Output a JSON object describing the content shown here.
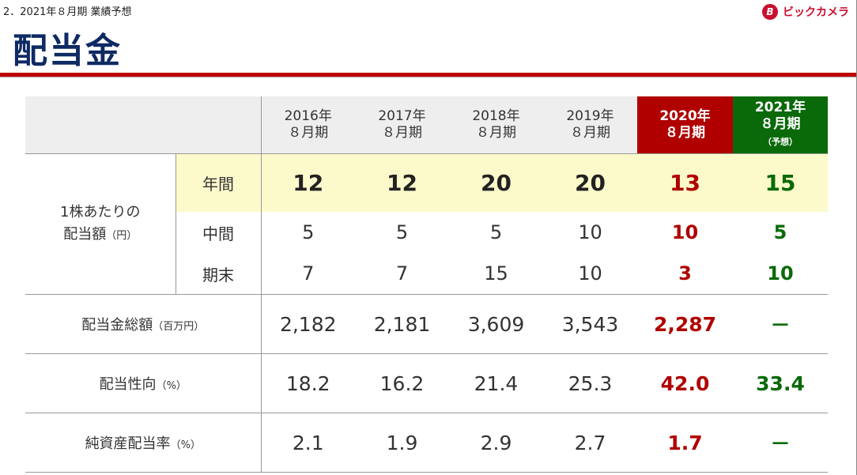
{
  "header": {
    "subtitle": "2．2021年８月期 業績予想",
    "title": "配当金",
    "logo_text": "ビックカメラ",
    "logo_mark": "B"
  },
  "table": {
    "columns": [
      {
        "year": "2016年",
        "period": "８月期"
      },
      {
        "year": "2017年",
        "period": "８月期"
      },
      {
        "year": "2018年",
        "period": "８月期"
      },
      {
        "year": "2019年",
        "period": "８月期"
      },
      {
        "year": "2020年",
        "period": "８月期"
      },
      {
        "year": "2021年",
        "period": "８月期",
        "note": "（予想）"
      }
    ],
    "per_share_group": {
      "line1": "1株あたりの",
      "line2": "配当額",
      "unit": "（円）"
    },
    "annual": {
      "label": "年間",
      "values": [
        "12",
        "12",
        "20",
        "20",
        "13",
        "15"
      ]
    },
    "interim": {
      "label": "中間",
      "values": [
        "5",
        "5",
        "5",
        "10",
        "10",
        "5"
      ]
    },
    "year_end": {
      "label": "期末",
      "values": [
        "7",
        "7",
        "15",
        "10",
        "3",
        "10"
      ]
    },
    "total_dividends": {
      "label": "配当金総額",
      "unit": "（百万円）",
      "values": [
        "2,182",
        "2,181",
        "3,609",
        "3,543",
        "2,287",
        "－"
      ]
    },
    "payout_ratio": {
      "label": "配当性向",
      "unit": "（%）",
      "values": [
        "18.2",
        "16.2",
        "21.4",
        "25.3",
        "42.0",
        "33.4"
      ]
    },
    "doe": {
      "label": "純資産配当率",
      "unit": "（%）",
      "values": [
        "2.1",
        "1.9",
        "2.9",
        "2.7",
        "1.7",
        "－"
      ]
    }
  },
  "colors": {
    "accent_red": "#b00000",
    "forecast_green": "#0a6a0a",
    "title_navy": "#0e2a63",
    "highlight_yellow": "#fcfacb"
  }
}
